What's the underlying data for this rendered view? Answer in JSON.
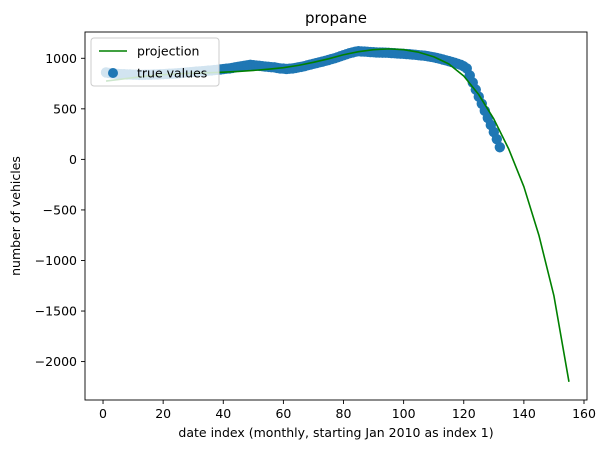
{
  "chart_data": {
    "type": "scatter",
    "title": "propane",
    "xlabel": "date index (monthly, starting Jan 2010 as index 1)",
    "ylabel": "number of vehicles",
    "xlim": [
      -6,
      161
    ],
    "ylim": [
      -2380,
      1260
    ],
    "xticks": [
      0,
      20,
      40,
      60,
      80,
      100,
      120,
      140,
      160
    ],
    "yticks": [
      1000,
      500,
      0,
      -500,
      -1000,
      -1500,
      -2000
    ],
    "grid": false,
    "legend": {
      "placement": "upper-left",
      "entries": [
        "projection",
        "true values"
      ]
    },
    "colors": {
      "projection": "#008000",
      "true_values": "#1f77b4"
    },
    "series": [
      {
        "name": "projection",
        "type": "line",
        "x": [
          1,
          5,
          10,
          15,
          20,
          25,
          30,
          35,
          40,
          45,
          50,
          55,
          60,
          65,
          70,
          75,
          80,
          85,
          90,
          95,
          100,
          105,
          110,
          115,
          120,
          125,
          130,
          135,
          140,
          145,
          150,
          155
        ],
        "y": [
          775,
          790,
          808,
          825,
          838,
          847,
          852,
          857,
          863,
          870,
          880,
          892,
          907,
          930,
          960,
          995,
          1035,
          1065,
          1085,
          1093,
          1085,
          1060,
          1015,
          945,
          825,
          640,
          400,
          100,
          -270,
          -750,
          -1350,
          -2200
        ]
      },
      {
        "name": "true values",
        "type": "scatter",
        "x": [
          1,
          2,
          3,
          4,
          5,
          6,
          7,
          8,
          9,
          10,
          11,
          12,
          13,
          14,
          15,
          16,
          17,
          18,
          19,
          20,
          21,
          22,
          23,
          24,
          25,
          26,
          27,
          28,
          29,
          30,
          31,
          32,
          33,
          34,
          35,
          36,
          37,
          38,
          39,
          40,
          41,
          42,
          43,
          44,
          45,
          46,
          47,
          48,
          49,
          50,
          51,
          52,
          53,
          54,
          55,
          56,
          57,
          58,
          59,
          60,
          61,
          62,
          63,
          64,
          65,
          66,
          67,
          68,
          69,
          70,
          71,
          72,
          73,
          74,
          75,
          76,
          77,
          78,
          79,
          80,
          81,
          82,
          83,
          84,
          85,
          86,
          87,
          88,
          89,
          90,
          91,
          92,
          93,
          94,
          95,
          96,
          97,
          98,
          99,
          100,
          101,
          102,
          103,
          104,
          105,
          106,
          107,
          108,
          109,
          110,
          111,
          112,
          113,
          114,
          115,
          116,
          117,
          118,
          119,
          120,
          121,
          122,
          123,
          124,
          125,
          126,
          127,
          128,
          129,
          130,
          131,
          132
        ],
        "y": [
          860,
          855,
          850,
          848,
          845,
          843,
          842,
          840,
          840,
          838,
          838,
          836,
          836,
          837,
          838,
          838,
          840,
          840,
          842,
          843,
          845,
          847,
          848,
          850,
          852,
          855,
          858,
          860,
          862,
          865,
          868,
          870,
          872,
          875,
          878,
          880,
          883,
          886,
          890,
          893,
          897,
          900,
          905,
          910,
          915,
          920,
          925,
          930,
          935,
          932,
          928,
          925,
          922,
          918,
          915,
          912,
          910,
          905,
          900,
          898,
          895,
          897,
          900,
          905,
          910,
          915,
          922,
          930,
          938,
          945,
          953,
          960,
          967,
          975,
          983,
          992,
          1000,
          1010,
          1020,
          1030,
          1040,
          1050,
          1058,
          1065,
          1070,
          1068,
          1066,
          1064,
          1062,
          1060,
          1058,
          1057,
          1056,
          1055,
          1054,
          1052,
          1050,
          1048,
          1046,
          1044,
          1042,
          1040,
          1037,
          1034,
          1031,
          1028,
          1025,
          1020,
          1015,
          1010,
          1003,
          996,
          988,
          980,
          972,
          964,
          955,
          945,
          935,
          920,
          900,
          830,
          760,
          690,
          620,
          550,
          480,
          410,
          340,
          270,
          200,
          120
        ]
      }
    ]
  }
}
